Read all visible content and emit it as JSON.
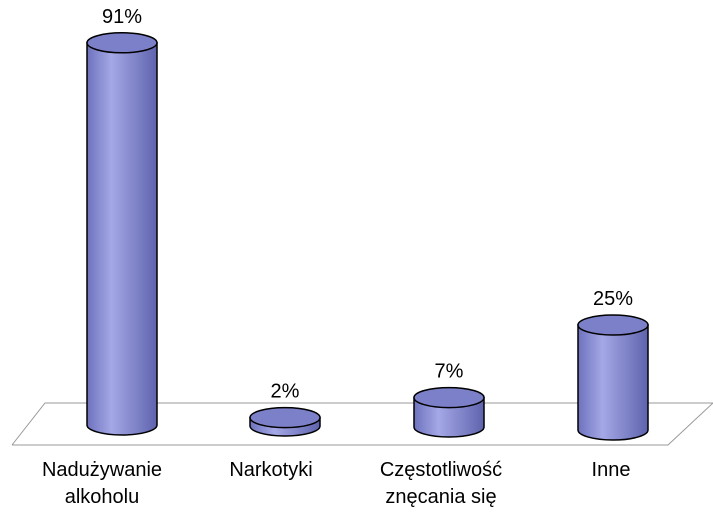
{
  "chart_data": {
    "type": "bar",
    "categories": [
      "Nadużywanie alkoholu",
      "Narkotyki",
      "Częstotliwość znęcania się",
      "Inne"
    ],
    "values": [
      91,
      2,
      7,
      25
    ],
    "value_labels": [
      "91%",
      "2%",
      "7%",
      "25%"
    ],
    "color": "#7c80c9"
  }
}
